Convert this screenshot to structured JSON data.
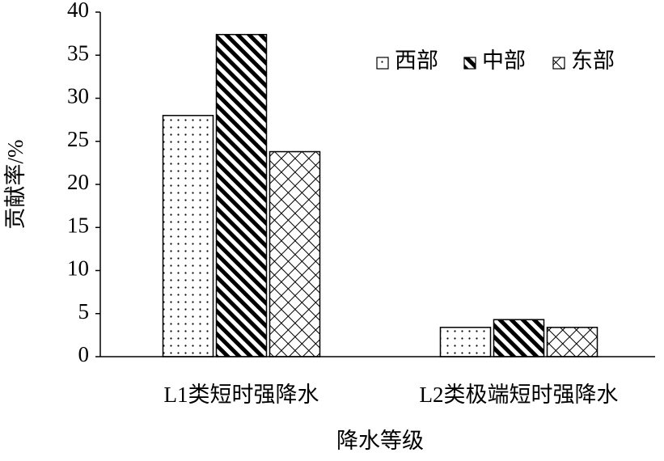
{
  "chart_data": {
    "type": "bar",
    "xlabel": "降水等级",
    "ylabel": "贡献率/%",
    "categories": [
      "L1类短时强降水",
      "L2类极端短时强降水"
    ],
    "series": [
      {
        "name": "西部",
        "color": "#000000",
        "pattern": "dots",
        "values": [
          28,
          3.4
        ]
      },
      {
        "name": "中部",
        "color": "#000000",
        "pattern": "stripes",
        "values": [
          37.4,
          4.3
        ]
      },
      {
        "name": "东部",
        "color": "#000000",
        "pattern": "crosshatch",
        "values": [
          23.8,
          3.4
        ]
      }
    ],
    "ylim": [
      0,
      40
    ],
    "yticks": [
      0,
      5,
      10,
      15,
      20,
      25,
      30,
      35,
      40
    ],
    "grid": false,
    "legend": "upper right"
  }
}
